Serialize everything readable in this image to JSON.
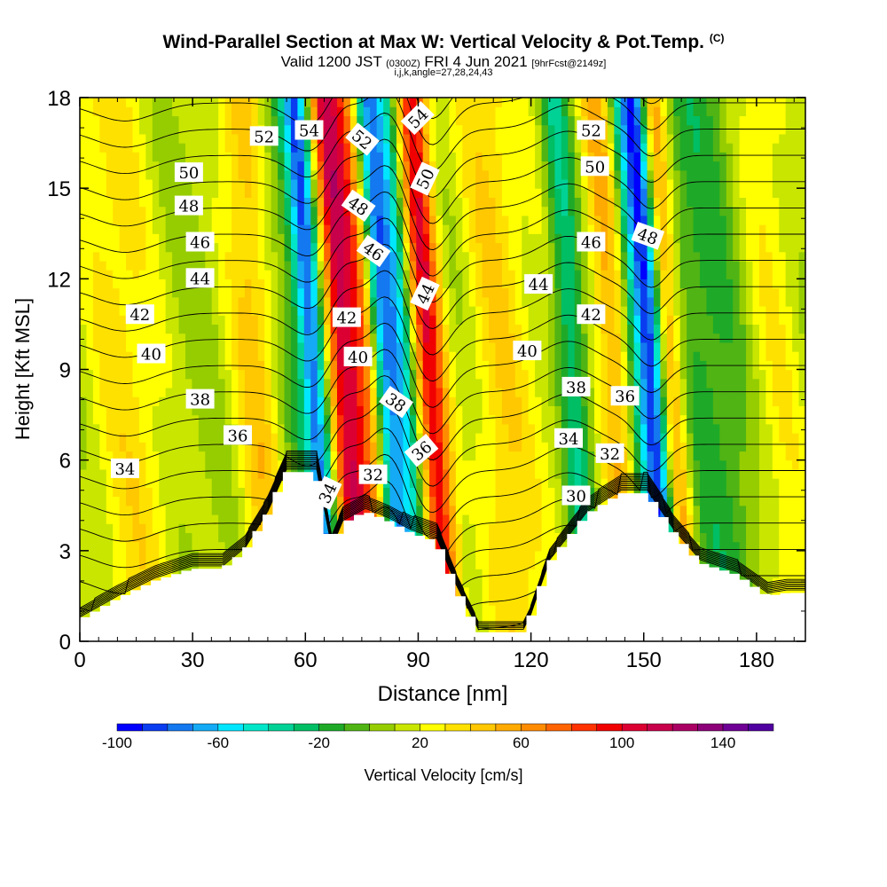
{
  "header": {
    "title": "Wind-Parallel Section at Max W: Vertical Velocity & Pot.Temp.",
    "copyright": "(C)",
    "valid_prefix": "Valid 1200 JST",
    "valid_utc": "(0300Z)",
    "valid_date": "FRI 4 Jun 2021",
    "forecast": "[9hrFcst@2149z]",
    "indices": "i,j,k,angle=27,28,24,43"
  },
  "chart_data": {
    "type": "heatmap",
    "title": "Wind-Parallel Section at Max W: Vertical Velocity & Pot.Temp.",
    "xlabel": "Distance [nm]",
    "ylabel": "Height [Kft MSL]",
    "xlim": [
      0,
      193
    ],
    "ylim": [
      0,
      18
    ],
    "x_ticks": [
      0,
      30,
      60,
      90,
      120,
      150,
      180
    ],
    "y_ticks": [
      0,
      3,
      6,
      9,
      12,
      15,
      18
    ],
    "x_tick_labels": [
      "0",
      "30",
      "60",
      "90",
      "120",
      "150",
      "180"
    ],
    "y_tick_labels": [
      "0",
      "3",
      "6",
      "9",
      "12",
      "15",
      "18"
    ],
    "colorbar": {
      "label": "Vertical Velocity [cm/s]",
      "min": -100,
      "max": 160,
      "step": 10,
      "tick_values": [
        -100,
        -60,
        -20,
        20,
        60,
        100,
        140
      ],
      "tick_labels": [
        "-100",
        "-60",
        "-20",
        "20",
        "60",
        "100",
        "140"
      ],
      "colors": [
        "#0000ff",
        "#0a3cf0",
        "#1478f0",
        "#14aaf5",
        "#00e6ff",
        "#00e6c8",
        "#00d296",
        "#00be64",
        "#1eaa28",
        "#50b414",
        "#96cd00",
        "#c8e600",
        "#ffff00",
        "#ffe100",
        "#ffc800",
        "#ffaa00",
        "#ff8c00",
        "#ff6400",
        "#ff3200",
        "#f00000",
        "#dc0032",
        "#c8004b",
        "#aa0064",
        "#8c0078",
        "#6e0096",
        "#5000a0"
      ]
    },
    "vertical_velocity_features": [
      {
        "x": 12,
        "w": 30,
        "sx": 8,
        "sy": 3
      },
      {
        "x": 47,
        "w": 40,
        "sx": 5,
        "sy": 9
      },
      {
        "x": 55,
        "w": -15,
        "sx": 3,
        "sy": 8
      },
      {
        "x": 62,
        "w": -85,
        "sx": 2.5,
        "sy": 10
      },
      {
        "x": 70,
        "w": 100,
        "sx": 3,
        "sy": 10
      },
      {
        "x": 76,
        "w": 60,
        "sx": 3,
        "sy": 10
      },
      {
        "x": 81,
        "w": -80,
        "sx": 2.5,
        "sy": 10
      },
      {
        "x": 86,
        "w": -50,
        "sx": 2.5,
        "sy": 10
      },
      {
        "x": 93,
        "w": 95,
        "sx": 3,
        "sy": 10
      },
      {
        "x": 112,
        "w": 35,
        "sx": 6,
        "sy": 4
      },
      {
        "x": 130,
        "w": 20,
        "sx": 6,
        "sy": 8
      },
      {
        "x": 131,
        "w": -55,
        "sx": 3,
        "sy": 3
      },
      {
        "x": 142,
        "w": 45,
        "sx": 3,
        "sy": 10
      },
      {
        "x": 148,
        "w": -25,
        "sx": 2,
        "sy": 10
      },
      {
        "x": 152,
        "w": -95,
        "sx": 2.5,
        "sy": 10
      },
      {
        "x": 157,
        "w": 60,
        "sx": 2.5,
        "sy": 10
      },
      {
        "x": 168,
        "w": -20,
        "sx": 8,
        "sy": 8
      },
      {
        "x": 185,
        "w": 25,
        "sx": 6,
        "sy": 8
      }
    ],
    "terrain": [
      {
        "x": 0,
        "height": 0.7
      },
      {
        "x": 10,
        "height": 1.4
      },
      {
        "x": 20,
        "height": 2.0
      },
      {
        "x": 30,
        "height": 2.4
      },
      {
        "x": 38,
        "height": 2.4
      },
      {
        "x": 44,
        "height": 3.0
      },
      {
        "x": 50,
        "height": 4.2
      },
      {
        "x": 55,
        "height": 5.6
      },
      {
        "x": 63,
        "height": 5.6
      },
      {
        "x": 67,
        "height": 3.0
      },
      {
        "x": 70,
        "height": 3.9
      },
      {
        "x": 76,
        "height": 4.3
      },
      {
        "x": 82,
        "height": 4.0
      },
      {
        "x": 88,
        "height": 3.6
      },
      {
        "x": 95,
        "height": 3.3
      },
      {
        "x": 100,
        "height": 1.8
      },
      {
        "x": 106,
        "height": 0.3
      },
      {
        "x": 112,
        "height": 0.3
      },
      {
        "x": 118,
        "height": 0.3
      },
      {
        "x": 120,
        "height": 0.8
      },
      {
        "x": 125,
        "height": 2.6
      },
      {
        "x": 135,
        "height": 4.2
      },
      {
        "x": 144,
        "height": 4.9
      },
      {
        "x": 151,
        "height": 4.9
      },
      {
        "x": 158,
        "height": 3.6
      },
      {
        "x": 165,
        "height": 2.6
      },
      {
        "x": 175,
        "height": 2.2
      },
      {
        "x": 183,
        "height": 1.5
      },
      {
        "x": 188,
        "height": 1.6
      },
      {
        "x": 193,
        "height": 1.6
      }
    ],
    "theta_contours": {
      "min": 28,
      "max": 55,
      "interval": 1,
      "labels": [
        {
          "text": "34",
          "x": 12,
          "y": 5.7,
          "angle": 0
        },
        {
          "text": "36",
          "x": 42,
          "y": 6.8,
          "angle": 0
        },
        {
          "text": "38",
          "x": 32,
          "y": 8.0,
          "angle": 0
        },
        {
          "text": "40",
          "x": 19,
          "y": 9.5,
          "angle": 0
        },
        {
          "text": "42",
          "x": 16,
          "y": 10.8,
          "angle": 0
        },
        {
          "text": "44",
          "x": 32,
          "y": 12.0,
          "angle": 0
        },
        {
          "text": "46",
          "x": 32,
          "y": 13.2,
          "angle": 0
        },
        {
          "text": "48",
          "x": 29,
          "y": 14.4,
          "angle": 0
        },
        {
          "text": "50",
          "x": 29,
          "y": 15.5,
          "angle": 0
        },
        {
          "text": "52",
          "x": 49,
          "y": 16.7,
          "angle": 0
        },
        {
          "text": "54",
          "x": 61,
          "y": 16.9,
          "angle": 0
        },
        {
          "text": "52",
          "x": 75,
          "y": 16.6,
          "angle": 40
        },
        {
          "text": "54",
          "x": 90,
          "y": 17.3,
          "angle": -45
        },
        {
          "text": "48",
          "x": 74,
          "y": 14.4,
          "angle": 35
        },
        {
          "text": "50",
          "x": 92,
          "y": 15.3,
          "angle": -65
        },
        {
          "text": "46",
          "x": 78,
          "y": 12.9,
          "angle": 35
        },
        {
          "text": "44",
          "x": 92,
          "y": 11.5,
          "angle": -65
        },
        {
          "text": "42",
          "x": 71,
          "y": 10.7,
          "angle": 0
        },
        {
          "text": "40",
          "x": 74,
          "y": 9.4,
          "angle": 0
        },
        {
          "text": "38",
          "x": 84,
          "y": 7.9,
          "angle": 35
        },
        {
          "text": "36",
          "x": 91,
          "y": 6.3,
          "angle": -40
        },
        {
          "text": "34",
          "x": 66,
          "y": 4.9,
          "angle": -65
        },
        {
          "text": "32",
          "x": 78,
          "y": 5.5,
          "angle": 0
        },
        {
          "text": "52",
          "x": 136,
          "y": 16.9,
          "angle": 0
        },
        {
          "text": "50",
          "x": 137,
          "y": 15.7,
          "angle": 0
        },
        {
          "text": "46",
          "x": 136,
          "y": 13.2,
          "angle": 0
        },
        {
          "text": "48",
          "x": 151,
          "y": 13.4,
          "angle": 20
        },
        {
          "text": "44",
          "x": 122,
          "y": 11.8,
          "angle": 0
        },
        {
          "text": "42",
          "x": 136,
          "y": 10.8,
          "angle": 0
        },
        {
          "text": "40",
          "x": 119,
          "y": 9.6,
          "angle": 0
        },
        {
          "text": "38",
          "x": 132,
          "y": 8.4,
          "angle": 0
        },
        {
          "text": "36",
          "x": 145,
          "y": 8.1,
          "angle": 0
        },
        {
          "text": "34",
          "x": 130,
          "y": 6.7,
          "angle": 0
        },
        {
          "text": "32",
          "x": 141,
          "y": 6.2,
          "angle": 0
        },
        {
          "text": "30",
          "x": 132,
          "y": 4.8,
          "angle": 0
        }
      ]
    }
  }
}
